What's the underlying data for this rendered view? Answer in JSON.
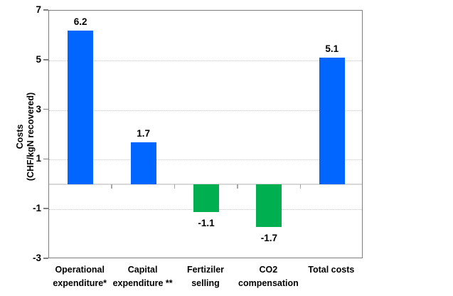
{
  "chart_data": {
    "type": "bar",
    "title": "",
    "xlabel": "",
    "ylabel_lines": [
      "Costs",
      "(CHF/kgN recovered)"
    ],
    "categories": [
      "Operational\nexpenditure*",
      "Capital\nexpenditure **",
      "Fertiziler\nselling",
      "CO2\ncompensation",
      "Total costs"
    ],
    "category_slugs": [
      "operational-expenditure",
      "capital-expenditure",
      "fertiziler-selling",
      "co2-compensation",
      "total-costs"
    ],
    "values": [
      6.2,
      1.7,
      -1.1,
      -1.7,
      5.1
    ],
    "data_labels": [
      "6.2",
      "1.7",
      "-1.1",
      "-1.7",
      "5.1"
    ],
    "bar_colors": [
      "#0066FF",
      "#0066FF",
      "#00B050",
      "#00B050",
      "#0066FF"
    ],
    "yticks": [
      7,
      5,
      3,
      1,
      -1,
      -3
    ],
    "gridline_values": [
      5,
      3,
      1,
      -1
    ],
    "ylim": [
      -3,
      7
    ],
    "grid": "dotted-horizontal",
    "legend": "none",
    "colors": {
      "positive_bar": "#0066FF",
      "negative_bar": "#00B050",
      "axis_frame": "#7F7F7F",
      "zero_line": "#D9D9D9",
      "gridline": "#C6C6C6",
      "text": "#000000"
    }
  }
}
